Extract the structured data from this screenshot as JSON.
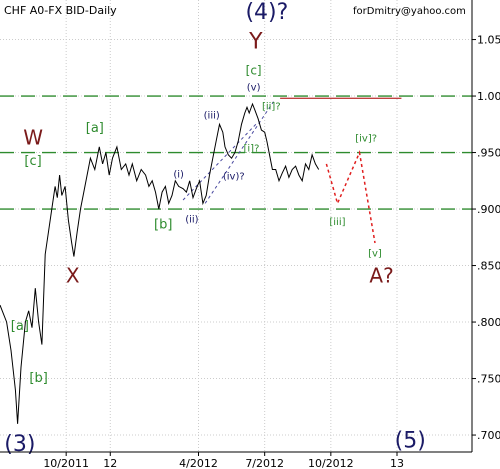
{
  "chart_data": {
    "type": "line",
    "title": "CHF A0-FX BID-Daily",
    "watermark": "forDmitry@yahoo.com",
    "yticks": [
      {
        "label": "1.05",
        "value": 1.05
      },
      {
        "label": "1.00",
        "value": 1.0
      },
      {
        "label": ".950",
        "value": 0.95
      },
      {
        "label": ".900",
        "value": 0.9
      },
      {
        "label": ".850",
        "value": 0.85
      },
      {
        "label": ".800",
        "value": 0.8
      },
      {
        "label": ".750",
        "value": 0.75
      },
      {
        "label": ".700",
        "value": 0.7
      }
    ],
    "xticks": [
      {
        "label": "10/2011",
        "t": 3
      },
      {
        "label": "12",
        "t": 5
      },
      {
        "label": "4/2012",
        "t": 9
      },
      {
        "label": "7/2012",
        "t": 12
      },
      {
        "label": "10/2012",
        "t": 15
      },
      {
        "label": "13",
        "t": 18
      }
    ],
    "xlim": [
      0,
      21.4
    ],
    "ylim": [
      0.685,
      1.085
    ],
    "price_series": {
      "name": "",
      "points": [
        [
          0.0,
          0.815
        ],
        [
          0.3,
          0.8
        ],
        [
          0.5,
          0.775
        ],
        [
          0.7,
          0.74
        ],
        [
          0.8,
          0.71
        ],
        [
          0.95,
          0.76
        ],
        [
          1.15,
          0.8
        ],
        [
          1.3,
          0.81
        ],
        [
          1.45,
          0.795
        ],
        [
          1.6,
          0.83
        ],
        [
          1.75,
          0.8
        ],
        [
          1.9,
          0.78
        ],
        [
          2.05,
          0.86
        ],
        [
          2.2,
          0.88
        ],
        [
          2.35,
          0.9
        ],
        [
          2.5,
          0.92
        ],
        [
          2.6,
          0.91
        ],
        [
          2.7,
          0.93
        ],
        [
          2.8,
          0.912
        ],
        [
          2.95,
          0.92
        ],
        [
          3.1,
          0.89
        ],
        [
          3.25,
          0.87
        ],
        [
          3.35,
          0.858
        ],
        [
          3.5,
          0.88
        ],
        [
          3.65,
          0.9
        ],
        [
          3.8,
          0.915
        ],
        [
          3.95,
          0.93
        ],
        [
          4.1,
          0.945
        ],
        [
          4.3,
          0.935
        ],
        [
          4.5,
          0.955
        ],
        [
          4.65,
          0.94
        ],
        [
          4.8,
          0.95
        ],
        [
          4.95,
          0.93
        ],
        [
          5.1,
          0.945
        ],
        [
          5.3,
          0.955
        ],
        [
          5.5,
          0.935
        ],
        [
          5.7,
          0.94
        ],
        [
          5.85,
          0.93
        ],
        [
          6.0,
          0.94
        ],
        [
          6.2,
          0.925
        ],
        [
          6.4,
          0.935
        ],
        [
          6.6,
          0.93
        ],
        [
          6.75,
          0.92
        ],
        [
          6.9,
          0.925
        ],
        [
          7.05,
          0.915
        ],
        [
          7.2,
          0.9
        ],
        [
          7.35,
          0.915
        ],
        [
          7.5,
          0.92
        ],
        [
          7.65,
          0.905
        ],
        [
          7.8,
          0.912
        ],
        [
          7.95,
          0.925
        ],
        [
          8.1,
          0.92
        ],
        [
          8.3,
          0.918
        ],
        [
          8.45,
          0.915
        ],
        [
          8.6,
          0.925
        ],
        [
          8.75,
          0.91
        ],
        [
          8.9,
          0.918
        ],
        [
          9.05,
          0.925
        ],
        [
          9.2,
          0.905
        ],
        [
          9.35,
          0.912
        ],
        [
          9.5,
          0.93
        ],
        [
          9.65,
          0.945
        ],
        [
          9.8,
          0.96
        ],
        [
          9.95,
          0.975
        ],
        [
          10.1,
          0.968
        ],
        [
          10.2,
          0.955
        ],
        [
          10.35,
          0.948
        ],
        [
          10.5,
          0.945
        ],
        [
          10.65,
          0.95
        ],
        [
          10.8,
          0.96
        ],
        [
          10.95,
          0.975
        ],
        [
          11.1,
          0.985
        ],
        [
          11.2,
          0.99
        ],
        [
          11.3,
          0.985
        ],
        [
          11.45,
          0.993
        ],
        [
          11.55,
          0.988
        ],
        [
          11.7,
          0.98
        ],
        [
          11.85,
          0.97
        ],
        [
          12.0,
          0.968
        ],
        [
          12.1,
          0.96
        ],
        [
          12.2,
          0.95
        ],
        [
          12.35,
          0.935
        ],
        [
          12.5,
          0.935
        ],
        [
          12.65,
          0.925
        ],
        [
          12.8,
          0.932
        ],
        [
          12.95,
          0.938
        ],
        [
          13.1,
          0.928
        ],
        [
          13.25,
          0.935
        ],
        [
          13.4,
          0.938
        ],
        [
          13.55,
          0.93
        ],
        [
          13.7,
          0.925
        ],
        [
          13.85,
          0.94
        ],
        [
          14.0,
          0.935
        ],
        [
          14.15,
          0.948
        ],
        [
          14.3,
          0.94
        ],
        [
          14.45,
          0.935
        ]
      ]
    },
    "horizontal_lines": [
      {
        "value": 1.0,
        "style": "dashed",
        "color": "#2e8b2e"
      },
      {
        "value": 0.95,
        "style": "dashed",
        "color": "#2e8b2e"
      },
      {
        "value": 0.9,
        "style": "dashed",
        "color": "#2e8b2e"
      },
      {
        "value": 0.998,
        "from_t": 12.7,
        "to_t": 18.2,
        "style": "solid",
        "color": "#c04040"
      }
    ],
    "channel_lines": [
      {
        "from": [
          8.3,
          0.908
        ],
        "to": [
          11.6,
          0.975
        ],
        "color": "#4a4aa0",
        "style": "dashed"
      },
      {
        "from": [
          9.3,
          0.905
        ],
        "to": [
          12.4,
          0.995
        ],
        "color": "#4a4aa0",
        "style": "dashed"
      }
    ],
    "projection": {
      "points": [
        [
          14.8,
          0.94
        ],
        [
          15.3,
          0.905
        ],
        [
          16.3,
          0.95
        ],
        [
          17.0,
          0.87
        ]
      ],
      "color": "#e01e1e",
      "style": "dotted"
    },
    "wave_labels": [
      {
        "text": "(4)?",
        "t": 12.1,
        "v": 1.068,
        "color": "navy",
        "size": 22
      },
      {
        "text": "Y",
        "t": 11.6,
        "v": 1.042,
        "color": "red",
        "size": 22
      },
      {
        "text": "[c]",
        "t": 11.5,
        "v": 1.019,
        "color": "green",
        "size": 12
      },
      {
        "text": "(v)",
        "t": 11.5,
        "v": 1.005,
        "color": "navy",
        "size": 10
      },
      {
        "text": "[ii]?",
        "t": 12.3,
        "v": 0.988,
        "color": "green",
        "size": 10
      },
      {
        "text": "(iii)",
        "t": 9.6,
        "v": 0.98,
        "color": "navy",
        "size": 10
      },
      {
        "text": "[a]",
        "t": 4.3,
        "v": 0.968,
        "color": "green",
        "size": 13
      },
      {
        "text": "W",
        "t": 1.5,
        "v": 0.957,
        "color": "red",
        "size": 20
      },
      {
        "text": "[c]",
        "t": 1.5,
        "v": 0.939,
        "color": "green",
        "size": 13
      },
      {
        "text": "[i]?",
        "t": 11.4,
        "v": 0.951,
        "color": "green",
        "size": 10
      },
      {
        "text": "(i)",
        "t": 8.1,
        "v": 0.928,
        "color": "navy",
        "size": 10
      },
      {
        "text": "(iv)?",
        "t": 10.6,
        "v": 0.926,
        "color": "navy",
        "size": 10
      },
      {
        "text": "[iv]?",
        "t": 16.6,
        "v": 0.96,
        "color": "green",
        "size": 10
      },
      {
        "text": "[b]",
        "t": 7.4,
        "v": 0.883,
        "color": "green",
        "size": 13
      },
      {
        "text": "(ii)",
        "t": 8.7,
        "v": 0.888,
        "color": "navy",
        "size": 10
      },
      {
        "text": "[iii]",
        "t": 15.3,
        "v": 0.886,
        "color": "green",
        "size": 10
      },
      {
        "text": "[v]",
        "t": 17.0,
        "v": 0.858,
        "color": "green",
        "size": 10
      },
      {
        "text": "X",
        "t": 3.3,
        "v": 0.835,
        "color": "red",
        "size": 20
      },
      {
        "text": "A?",
        "t": 17.3,
        "v": 0.835,
        "color": "red",
        "size": 20
      },
      {
        "text": "[a]",
        "t": 0.9,
        "v": 0.793,
        "color": "green",
        "size": 13
      },
      {
        "text": "[b]",
        "t": 1.75,
        "v": 0.747,
        "color": "green",
        "size": 13
      },
      {
        "text": "(3)",
        "t": 0.9,
        "v": 0.686,
        "color": "navy",
        "size": 22
      },
      {
        "text": "(5)",
        "t": 18.6,
        "v": 0.689,
        "color": "navy",
        "size": 22
      }
    ]
  }
}
